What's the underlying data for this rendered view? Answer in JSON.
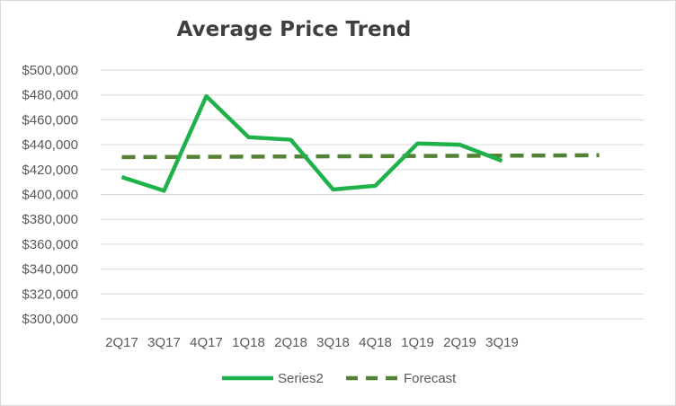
{
  "chart_data": {
    "type": "line",
    "title": "Average Price Trend",
    "xlabel": "",
    "ylabel": "",
    "categories": [
      "2Q17",
      "3Q17",
      "4Q17",
      "1Q18",
      "2Q18",
      "3Q18",
      "4Q18",
      "1Q19",
      "2Q19",
      "3Q19"
    ],
    "ylim": [
      300000,
      500000
    ],
    "yticks": [
      300000,
      320000,
      340000,
      360000,
      380000,
      400000,
      420000,
      440000,
      460000,
      480000,
      500000
    ],
    "ytick_labels": [
      "$300,000",
      "$320,000",
      "$340,000",
      "$360,000",
      "$380,000",
      "$400,000",
      "$420,000",
      "$440,000",
      "$460,000",
      "$480,000",
      "$500,000"
    ],
    "grid": true,
    "legend_position": "bottom",
    "series": [
      {
        "name": "Series2",
        "color": "#1fb14a",
        "style": "solid",
        "values": [
          414000,
          403000,
          479000,
          446000,
          444000,
          404000,
          407000,
          441000,
          440000,
          427000
        ]
      },
      {
        "name": "Forecast",
        "color": "#548235",
        "style": "dashed",
        "x_extends_to": 11.8,
        "start": 430000,
        "end": 431500
      }
    ]
  }
}
